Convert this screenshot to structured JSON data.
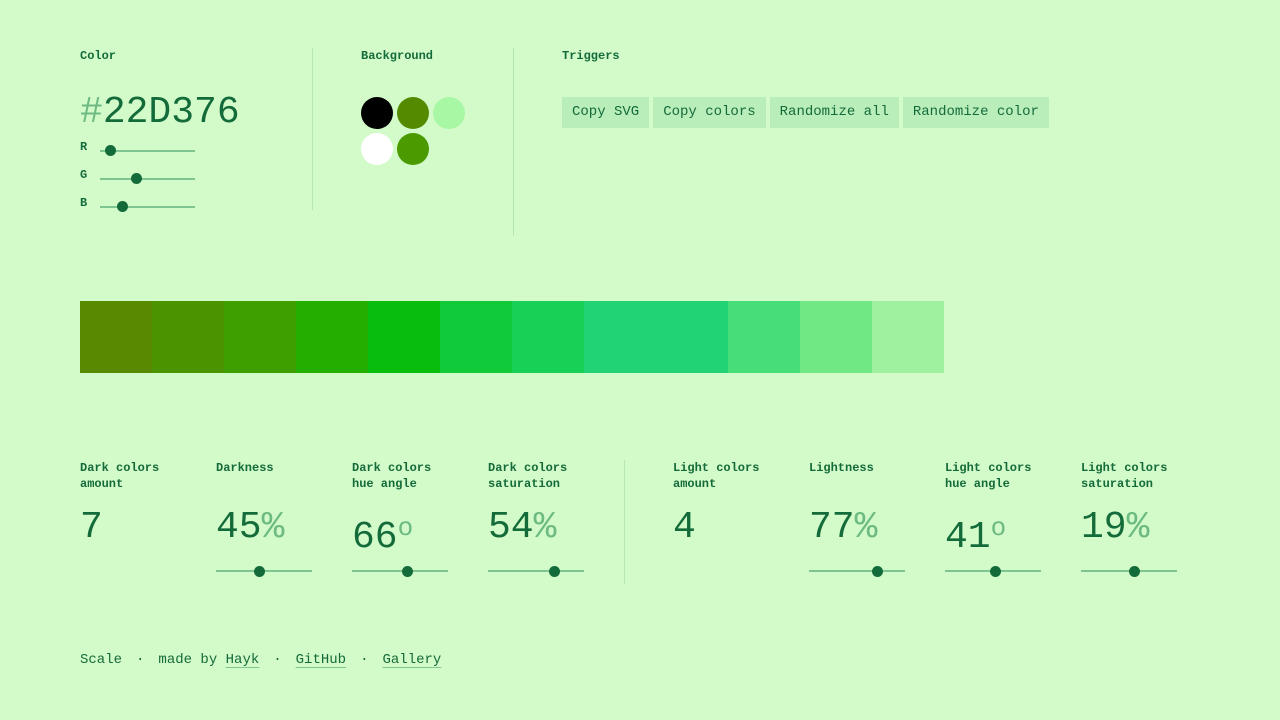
{
  "color": {
    "label": "Color",
    "hash": "#",
    "hex_value": "22D376",
    "r_label": "R",
    "g_label": "G",
    "b_label": "B",
    "r": 34,
    "g": 211,
    "b": 118
  },
  "background": {
    "label": "Background",
    "swatches": [
      "#000000",
      "#538a00",
      "#a7f7a4",
      "#ffffff",
      "#4a9a00"
    ]
  },
  "triggers": {
    "label": "Triggers",
    "buttons": [
      "Copy SVG",
      "Copy colors",
      "Randomize all",
      "Randomize color"
    ]
  },
  "palette": [
    "#578a00",
    "#4c9300",
    "#3d9f00",
    "#24ae00",
    "#09bd0e",
    "#11ca3a",
    "#19d056",
    "#22d376",
    "#22d376",
    "#46de78",
    "#70e985",
    "#a0f19f"
  ],
  "params": {
    "dark_amount": {
      "label": "Dark colors amount",
      "value": "7"
    },
    "darkness": {
      "label": "Darkness",
      "value": "45",
      "unit": "%",
      "level": 0.45
    },
    "dark_hue": {
      "label": "Dark colors hue angle",
      "value": "66",
      "unit": "o",
      "level": 0.59
    },
    "dark_sat": {
      "label": "Dark colors saturation",
      "value": "54",
      "unit": "%",
      "level": 0.72
    },
    "light_amount": {
      "label": "Light colors amount",
      "value": "4"
    },
    "lightness": {
      "label": "Lightness",
      "value": "77",
      "unit": "%",
      "level": 0.74
    },
    "light_hue": {
      "label": "Light colors hue angle",
      "value": "41",
      "unit": "o",
      "level": 0.53
    },
    "light_sat": {
      "label": "Light colors saturation",
      "value": "19",
      "unit": "%",
      "level": 0.56
    }
  },
  "footer": {
    "scale": "Scale",
    "made_by": "made by",
    "author": "Hayk",
    "github": "GitHub",
    "gallery": "Gallery",
    "sep": "·"
  }
}
